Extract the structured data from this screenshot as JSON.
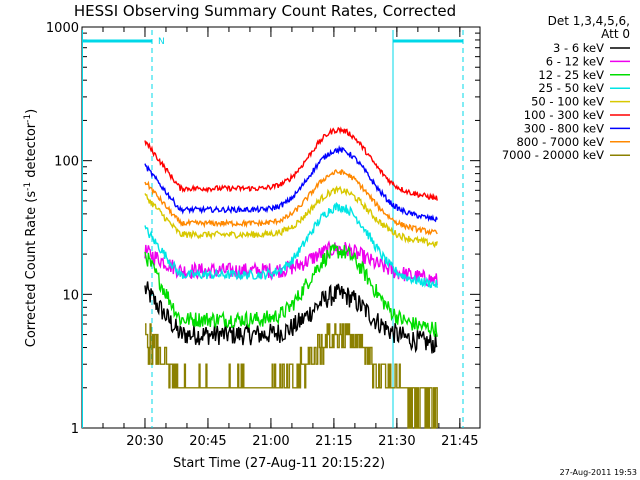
{
  "chart_data": {
    "type": "line",
    "title": "HESSI Observing Summary Count Rates, Corrected",
    "xlabel": "Start Time (27-Aug-11 20:15:22)",
    "ylabel": "Corrected Count Rate (s⁻¹ detector⁻¹)",
    "ylabel_parts": {
      "main": "Corrected Count Rate (s",
      "sup1": "-1",
      "mid": " detector",
      "sup2": "-1",
      "end": ")"
    },
    "yscale": "log",
    "ylim": [
      1,
      1000
    ],
    "xlim_minutes": [
      20.25,
      21.83
    ],
    "x_ticks": [
      "20:30",
      "20:45",
      "21:00",
      "21:15",
      "21:30",
      "21:45"
    ],
    "y_ticks": [
      "1",
      "10",
      "100",
      "1000"
    ],
    "legend_header": [
      "Det 1,3,4,5,6,",
      "Att 0"
    ],
    "legend_placement": "right",
    "footer_timestamp": "27-Aug-2011 19:53",
    "night_label": "N",
    "series": [
      {
        "name": "3 - 6 keV",
        "color": "#000000",
        "start": 11,
        "trough": 5,
        "peak": 10,
        "noise": 0.08
      },
      {
        "name": "6 - 12 keV",
        "color": "#ee00ee",
        "start": 21,
        "trough": 15,
        "peak": 22,
        "noise": 0.06
      },
      {
        "name": "12 - 25 keV",
        "color": "#00dd00",
        "start": 20,
        "trough": 6.5,
        "peak": 21,
        "noise": 0.06
      },
      {
        "name": "25 - 50 keV",
        "color": "#00e5e5",
        "start": 31,
        "trough": 14,
        "peak": 45,
        "noise": 0.035
      },
      {
        "name": "50 - 100 keV",
        "color": "#d8c800",
        "start": 55,
        "trough": 28,
        "peak": 60,
        "noise": 0.025
      },
      {
        "name": "100 - 300 keV",
        "color": "#ff0000",
        "start": 140,
        "trough": 62,
        "peak": 170,
        "noise": 0.02
      },
      {
        "name": "300 - 800 keV",
        "color": "#0000ff",
        "start": 92,
        "trough": 43,
        "peak": 120,
        "noise": 0.02
      },
      {
        "name": "800 - 7000 keV",
        "color": "#ff8800",
        "start": 70,
        "trough": 34,
        "peak": 82,
        "noise": 0.02
      },
      {
        "name": "7000 - 20000 keV",
        "color": "#8b8000",
        "start": 5,
        "trough": 2,
        "peak": 5,
        "noise": 0.12,
        "step": true
      }
    ]
  }
}
